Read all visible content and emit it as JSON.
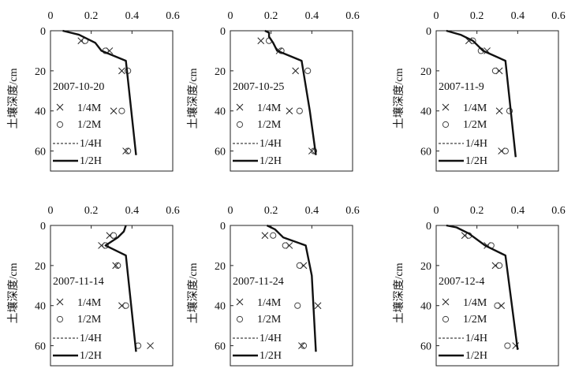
{
  "figure": {
    "ylabel": "土壤深度/cm",
    "legend": {
      "m4": "1/4M",
      "m2": "1/2M",
      "h4": "1/4H",
      "h2": "1/2H"
    },
    "xticks": [
      "0",
      "0.2",
      "0.4",
      "0.6"
    ],
    "yticks": [
      "0",
      "20",
      "40",
      "60"
    ]
  },
  "chart_data": [
    {
      "type": "scatter",
      "label": "2007-10-20",
      "xlim": [
        0,
        0.6
      ],
      "ylim": [
        0,
        70
      ],
      "y_inverted": true,
      "x_axis_position": "top",
      "series": [
        {
          "name": "1/4M",
          "marker": "x",
          "x": [
            0.15,
            0.29,
            0.35,
            0.31,
            0.37
          ],
          "y": [
            5,
            10,
            20,
            40,
            60
          ]
        },
        {
          "name": "1/2M",
          "marker": "o",
          "x": [
            0.17,
            0.27,
            0.38,
            0.35,
            0.38
          ],
          "y": [
            5,
            10,
            20,
            40,
            60
          ]
        },
        {
          "name": "1/4H",
          "style": "dashed",
          "x": [
            0.06,
            0.14,
            0.22,
            0.25,
            0.37,
            0.42
          ],
          "y": [
            0,
            2,
            6,
            10,
            15,
            62
          ]
        },
        {
          "name": "1/2H",
          "style": "solid",
          "x": [
            0.06,
            0.14,
            0.22,
            0.25,
            0.37,
            0.42
          ],
          "y": [
            0,
            2,
            6,
            10,
            15,
            62
          ]
        }
      ]
    },
    {
      "type": "scatter",
      "label": "2007-10-25",
      "xlim": [
        0,
        0.6
      ],
      "ylim": [
        0,
        70
      ],
      "y_inverted": true,
      "x_axis_position": "top",
      "series": [
        {
          "name": "1/4M",
          "marker": "x",
          "x": [
            0.15,
            0.24,
            0.32,
            0.29,
            0.4
          ],
          "y": [
            5,
            10,
            20,
            40,
            60
          ]
        },
        {
          "name": "1/2M",
          "marker": "o",
          "x": [
            0.19,
            0.25,
            0.38,
            0.34,
            0.41
          ],
          "y": [
            5,
            10,
            20,
            40,
            60
          ]
        },
        {
          "name": "1/4H",
          "style": "dashed",
          "x": [
            0.17,
            0.19,
            0.19,
            0.21,
            0.23,
            0.35,
            0.39,
            0.42
          ],
          "y": [
            0,
            1,
            3,
            6,
            10,
            15,
            40,
            62
          ]
        },
        {
          "name": "1/2H",
          "style": "solid",
          "x": [
            0.17,
            0.19,
            0.19,
            0.21,
            0.23,
            0.35,
            0.39,
            0.42
          ],
          "y": [
            0,
            1,
            3,
            6,
            10,
            15,
            40,
            62
          ]
        }
      ]
    },
    {
      "type": "scatter",
      "label": "2007-11-9",
      "xlim": [
        0,
        0.6
      ],
      "ylim": [
        0,
        70
      ],
      "y_inverted": true,
      "x_axis_position": "top",
      "series": [
        {
          "name": "1/4M",
          "marker": "x",
          "x": [
            0.16,
            0.25,
            0.31,
            0.31,
            0.32
          ],
          "y": [
            5,
            10,
            20,
            40,
            60
          ]
        },
        {
          "name": "1/2M",
          "marker": "o",
          "x": [
            0.18,
            0.22,
            0.29,
            0.36,
            0.34
          ],
          "y": [
            5,
            10,
            20,
            40,
            60
          ]
        },
        {
          "name": "1/4H",
          "style": "dashed",
          "x": [
            0.05,
            0.12,
            0.18,
            0.23,
            0.34,
            0.39
          ],
          "y": [
            0,
            2,
            5,
            10,
            15,
            63
          ]
        },
        {
          "name": "1/2H",
          "style": "solid",
          "x": [
            0.05,
            0.12,
            0.18,
            0.23,
            0.34,
            0.39
          ],
          "y": [
            0,
            2,
            5,
            10,
            15,
            63
          ]
        }
      ]
    },
    {
      "type": "scatter",
      "label": "2007-11-14",
      "xlim": [
        0,
        0.6
      ],
      "ylim": [
        0,
        70
      ],
      "y_inverted": true,
      "x_axis_position": "top",
      "series": [
        {
          "name": "1/4M",
          "marker": "x",
          "x": [
            0.29,
            0.25,
            0.32,
            0.35,
            0.49
          ],
          "y": [
            5,
            10,
            20,
            40,
            60
          ]
        },
        {
          "name": "1/2M",
          "marker": "o",
          "x": [
            0.31,
            0.27,
            0.33,
            0.37,
            0.43
          ],
          "y": [
            5,
            10,
            20,
            40,
            60
          ]
        },
        {
          "name": "1/4H",
          "style": "dashed",
          "x": [
            0.37,
            0.36,
            0.33,
            0.27,
            0.37,
            0.42
          ],
          "y": [
            0,
            3,
            6,
            10,
            15,
            63
          ]
        },
        {
          "name": "1/2H",
          "style": "solid",
          "x": [
            0.37,
            0.36,
            0.33,
            0.27,
            0.37,
            0.42
          ],
          "y": [
            0,
            3,
            6,
            10,
            15,
            63
          ]
        }
      ]
    },
    {
      "type": "scatter",
      "label": "2007-11-24",
      "xlim": [
        0,
        0.6
      ],
      "ylim": [
        0,
        70
      ],
      "y_inverted": true,
      "x_axis_position": "top",
      "series": [
        {
          "name": "1/4M",
          "marker": "x",
          "x": [
            0.17,
            0.29,
            0.36,
            0.43,
            0.35
          ],
          "y": [
            5,
            10,
            20,
            40,
            60
          ]
        },
        {
          "name": "1/2M",
          "marker": "o",
          "x": [
            0.21,
            0.27,
            0.34,
            0.33,
            0.36
          ],
          "y": [
            5,
            10,
            20,
            40,
            60
          ]
        },
        {
          "name": "1/4H",
          "style": "dashed",
          "x": [
            0.18,
            0.22,
            0.26,
            0.37,
            0.4,
            0.42
          ],
          "y": [
            0,
            2,
            6,
            10,
            25,
            63
          ]
        },
        {
          "name": "1/2H",
          "style": "solid",
          "x": [
            0.18,
            0.22,
            0.26,
            0.37,
            0.4,
            0.42
          ],
          "y": [
            0,
            2,
            6,
            10,
            25,
            63
          ]
        }
      ]
    },
    {
      "type": "scatter",
      "label": "2007-12-4",
      "xlim": [
        0,
        0.6
      ],
      "ylim": [
        0,
        70
      ],
      "y_inverted": true,
      "x_axis_position": "top",
      "series": [
        {
          "name": "1/4M",
          "marker": "x",
          "x": [
            0.14,
            0.25,
            0.29,
            0.32,
            0.39
          ],
          "y": [
            5,
            10,
            20,
            40,
            60
          ]
        },
        {
          "name": "1/2M",
          "marker": "o",
          "x": [
            0.16,
            0.27,
            0.31,
            0.3,
            0.35
          ],
          "y": [
            5,
            10,
            20,
            40,
            60
          ]
        },
        {
          "name": "1/4H",
          "style": "dashed",
          "x": [
            0.05,
            0.1,
            0.16,
            0.24,
            0.34,
            0.4
          ],
          "y": [
            0,
            1,
            4,
            10,
            15,
            62
          ]
        },
        {
          "name": "1/2H",
          "style": "solid",
          "x": [
            0.05,
            0.1,
            0.16,
            0.24,
            0.34,
            0.4
          ],
          "y": [
            0,
            1,
            4,
            10,
            15,
            62
          ]
        }
      ]
    }
  ]
}
